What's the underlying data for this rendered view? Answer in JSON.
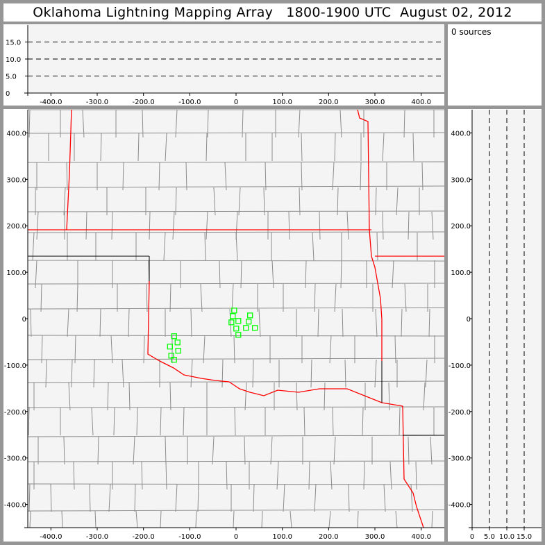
{
  "title": "Oklahoma Lightning Mapping Array   1800-1900 UTC  August 02, 2012",
  "sources_label": "0 sources",
  "colors": {
    "frame": "#969696",
    "panel": "#f4f4f4",
    "county": "#8c8c8c",
    "state": "#ff0000",
    "station": "#00ff00"
  },
  "map": {
    "xlim": [
      -450,
      450
    ],
    "ylim": [
      -450,
      450
    ],
    "x_ticks": [
      "-400.0",
      "-300.0",
      "-200.0",
      "-100.0",
      "0",
      "100.0",
      "200.0",
      "300.0",
      "400.0"
    ],
    "x_tick_values": [
      -400,
      -300,
      -200,
      -100,
      0,
      100,
      200,
      300,
      400
    ],
    "y_ticks": [
      "400.0",
      "300.0",
      "200.0",
      "100.0",
      "0",
      "-100.0",
      "-200.0",
      "-300.0",
      "-400.0"
    ],
    "y_tick_values": [
      400,
      300,
      200,
      100,
      0,
      -100,
      -200,
      -300,
      -400
    ],
    "stations": [
      [
        -4.0,
        17.5
      ],
      [
        -7.0,
        5.5
      ],
      [
        30.3,
        7.0
      ],
      [
        -10.0,
        -7.9
      ],
      [
        4.9,
        -4.9
      ],
      [
        27.3,
        -6.4
      ],
      [
        0.4,
        -21.3
      ],
      [
        21.4,
        -19.9
      ],
      [
        40.7,
        -19.9
      ],
      [
        4.9,
        -34.8
      ],
      [
        -133.9,
        -37.8
      ],
      [
        -126.4,
        -51.2
      ],
      [
        -142.8,
        -60.1
      ],
      [
        -125.0,
        -69.1
      ],
      [
        -140.0,
        -79.6
      ],
      [
        -134.0,
        -88.5
      ]
    ]
  },
  "top_panel": {
    "ylim": [
      0,
      20
    ],
    "y_ticks": [
      "15.0",
      "10.0",
      "5.0",
      "0"
    ],
    "y_tick_values": [
      15,
      10,
      5,
      0
    ],
    "dashed_levels": [
      5,
      10,
      15
    ]
  },
  "right_panel": {
    "xlim": [
      0,
      20
    ],
    "x_ticks": [
      "0",
      "5.0",
      "10.0",
      "15.0"
    ],
    "x_tick_values": [
      0,
      5,
      10,
      15
    ],
    "dashed_levels": [
      5,
      10,
      15
    ]
  }
}
